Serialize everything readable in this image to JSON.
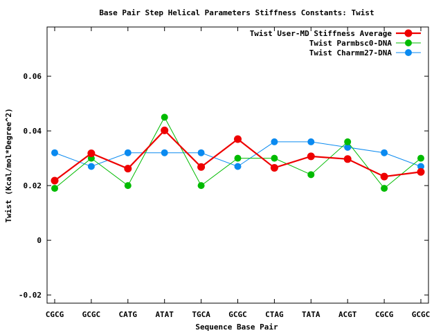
{
  "chart_data": {
    "type": "line",
    "title": "Base Pair Step Helical Parameters Stiffness Constants: Twist",
    "xlabel": "Sequence Base Pair",
    "ylabel": "Twist (Kcal/mol*Degree^2)",
    "categories": [
      "CGCG",
      "GCGC",
      "CATG",
      "ATAT",
      "TGCA",
      "GCGC",
      "CTAG",
      "TATA",
      "ACGT",
      "CGCG",
      "GCGC"
    ],
    "ylim": [
      -0.023,
      0.078
    ],
    "yticks": [
      -0.02,
      0,
      0.02,
      0.04,
      0.06
    ],
    "ytick_labels": [
      "-0.02",
      "0",
      "0.02",
      "0.04",
      "0.06"
    ],
    "grid": false,
    "legend_position": "top-right",
    "series": [
      {
        "name": "Twist User-MD Stiffness Average",
        "color": "#ee0000",
        "values": [
          0.0218,
          0.0318,
          0.0262,
          0.0402,
          0.0268,
          0.037,
          0.0265,
          0.0307,
          0.0297,
          0.0233,
          0.025
        ]
      },
      {
        "name": "Twist Parmbsc0-DNA",
        "color": "#00bb00",
        "values": [
          0.019,
          0.03,
          0.02,
          0.045,
          0.02,
          0.03,
          0.03,
          0.024,
          0.036,
          0.019,
          0.03
        ]
      },
      {
        "name": "Twist Charmm27-DNA",
        "color": "#0a8af0",
        "values": [
          0.032,
          0.027,
          0.032,
          0.032,
          0.032,
          0.027,
          0.036,
          0.036,
          0.034,
          0.032,
          0.027
        ]
      }
    ]
  }
}
